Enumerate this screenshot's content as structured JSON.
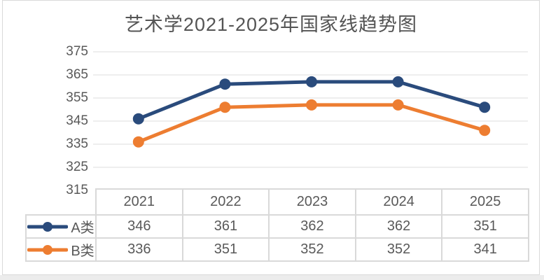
{
  "chart_data": {
    "type": "line",
    "title": "艺术学2021-2025年国家线趋势图",
    "categories": [
      "2021",
      "2022",
      "2023",
      "2024",
      "2025"
    ],
    "series": [
      {
        "name": "A类",
        "values": [
          346,
          361,
          362,
          362,
          351
        ],
        "color": "#2A4B7C"
      },
      {
        "name": "B类",
        "values": [
          336,
          351,
          352,
          352,
          341
        ],
        "color": "#ED7D31"
      }
    ],
    "xlabel": "",
    "ylabel": "",
    "ylim": [
      315,
      375
    ],
    "yticks": [
      375,
      365,
      355,
      345,
      335,
      325,
      315
    ],
    "grid": true,
    "legend_position": "table-left",
    "marker": "circle"
  },
  "theme": {
    "title_color": "#545454",
    "axis_text_color": "#595959",
    "table_text_color": "#595959",
    "gridline_color": "#e9e9e9",
    "table_border_color": "#d9d9d9",
    "panel_border_color": "#d9d9d9",
    "panel_background": "#ffffff",
    "bottom_strip_color": "#ececec"
  }
}
